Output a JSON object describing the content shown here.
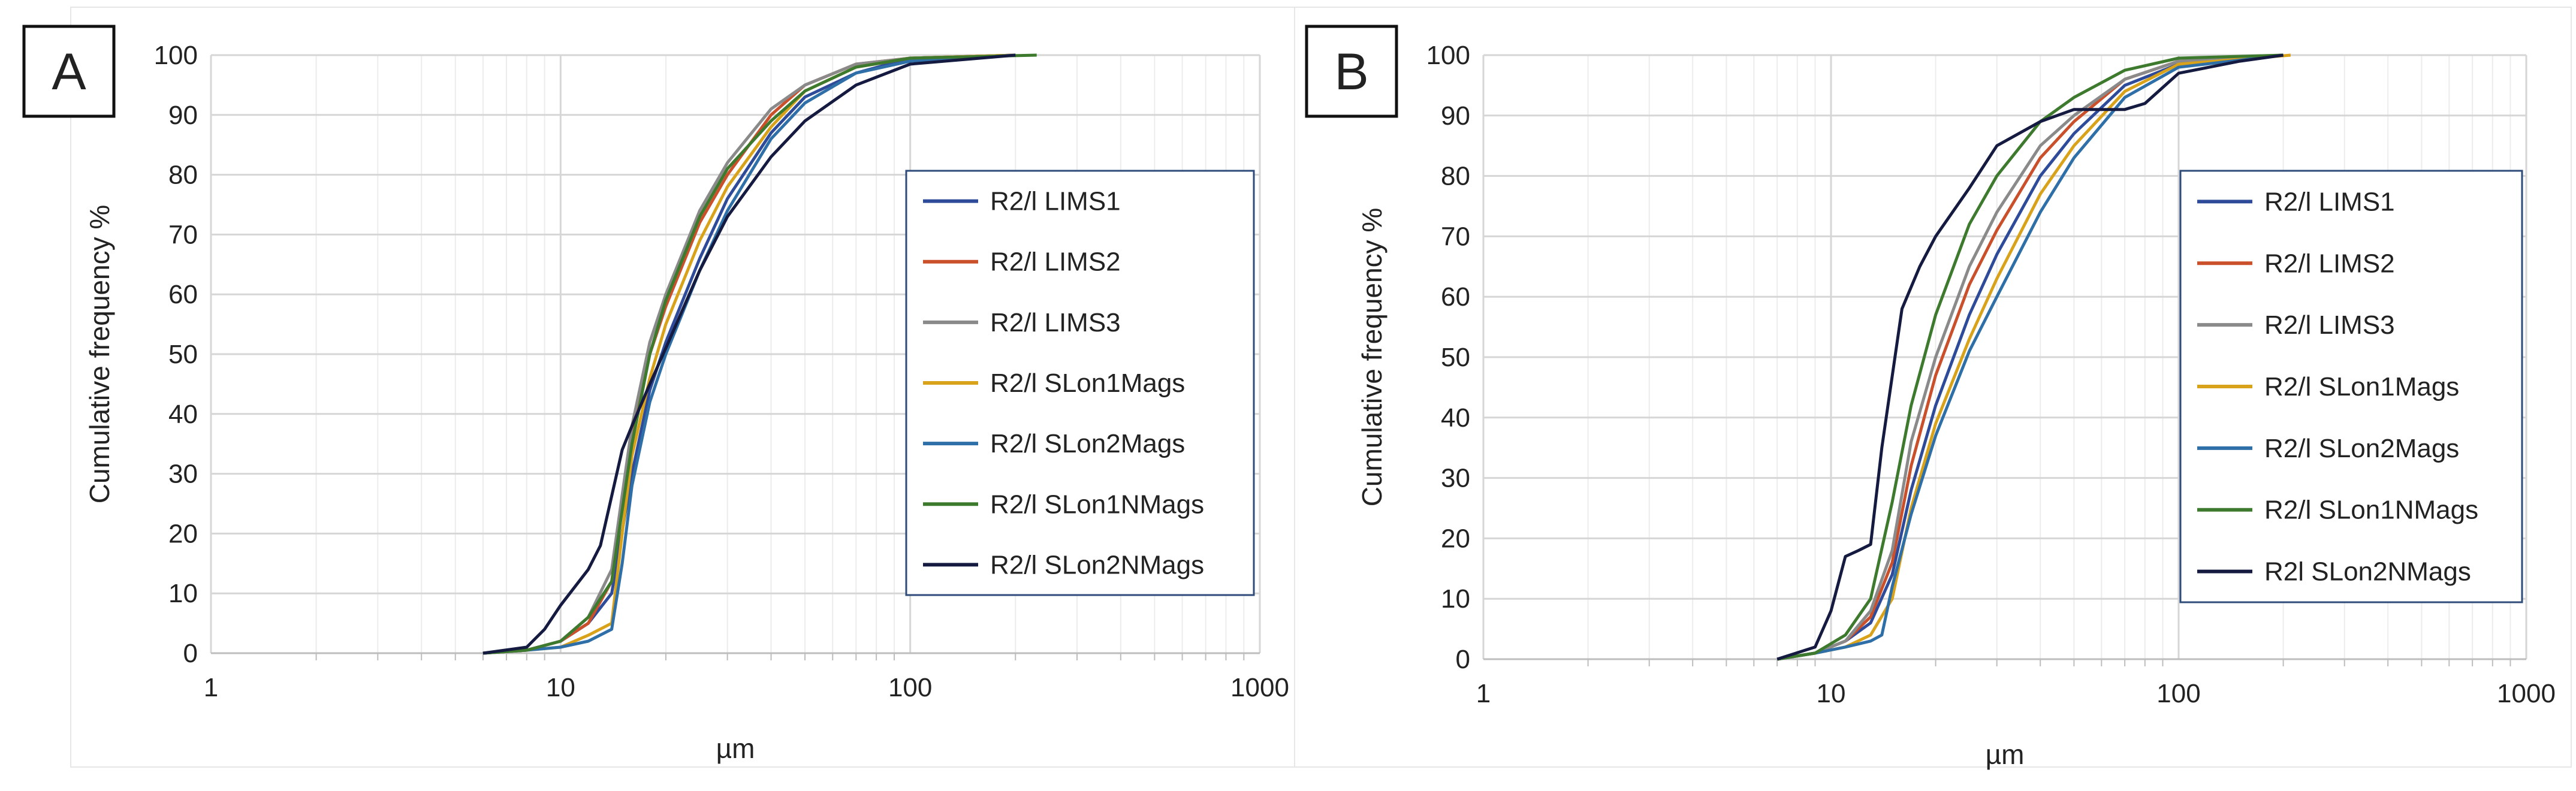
{
  "chart_data": [
    {
      "type": "line",
      "panel_label": "A",
      "xlabel": "µm",
      "ylabel": "Cumulative frequency %",
      "x_scale": "log",
      "xlim": [
        1,
        1000
      ],
      "ylim": [
        0,
        100
      ],
      "x_ticks": [
        "1",
        "10",
        "100",
        "1000"
      ],
      "y_ticks": [
        "0",
        "10",
        "20",
        "30",
        "40",
        "50",
        "60",
        "70",
        "80",
        "90",
        "100"
      ],
      "grid": true,
      "legend": "right",
      "series": [
        {
          "name": "R2/l LIMS1",
          "color": "#2e4b9a",
          "points": [
            [
              6,
              0
            ],
            [
              8,
              0.5
            ],
            [
              10,
              2
            ],
            [
              12,
              5
            ],
            [
              14,
              10
            ],
            [
              16,
              30
            ],
            [
              18,
              44
            ],
            [
              20,
              52
            ],
            [
              25,
              66
            ],
            [
              30,
              76
            ],
            [
              40,
              87
            ],
            [
              50,
              93
            ],
            [
              70,
              97
            ],
            [
              100,
              99.5
            ],
            [
              200,
              100
            ]
          ]
        },
        {
          "name": "R2/l LIMS2",
          "color": "#c9502a",
          "points": [
            [
              6,
              0
            ],
            [
              8,
              0.5
            ],
            [
              10,
              2
            ],
            [
              12,
              5
            ],
            [
              14,
              12
            ],
            [
              16,
              36
            ],
            [
              18,
              50
            ],
            [
              20,
              58
            ],
            [
              25,
              72
            ],
            [
              30,
              80
            ],
            [
              40,
              90
            ],
            [
              50,
              95
            ],
            [
              70,
              98.5
            ],
            [
              100,
              99.5
            ],
            [
              200,
              100
            ]
          ]
        },
        {
          "name": "R2/l LIMS3",
          "color": "#8a8a8a",
          "points": [
            [
              6,
              0
            ],
            [
              8,
              0.5
            ],
            [
              10,
              2
            ],
            [
              12,
              6
            ],
            [
              14,
              14
            ],
            [
              16,
              38
            ],
            [
              18,
              52
            ],
            [
              20,
              60
            ],
            [
              25,
              74
            ],
            [
              30,
              82
            ],
            [
              40,
              91
            ],
            [
              50,
              95
            ],
            [
              70,
              98.5
            ],
            [
              100,
              99.5
            ],
            [
              200,
              100
            ]
          ]
        },
        {
          "name": "R2/l SLon1Mags",
          "color": "#d9a21b",
          "points": [
            [
              6,
              0
            ],
            [
              8,
              0.5
            ],
            [
              10,
              1
            ],
            [
              12,
              3
            ],
            [
              14,
              5
            ],
            [
              15,
              20
            ],
            [
              16,
              33
            ],
            [
              18,
              46
            ],
            [
              20,
              55
            ],
            [
              25,
              69
            ],
            [
              30,
              78
            ],
            [
              40,
              88
            ],
            [
              50,
              94
            ],
            [
              70,
              98
            ],
            [
              100,
              99.5
            ],
            [
              200,
              100
            ]
          ]
        },
        {
          "name": "R2/l SLon2Mags",
          "color": "#2f6fa8",
          "points": [
            [
              6,
              0
            ],
            [
              8,
              0.5
            ],
            [
              10,
              1
            ],
            [
              12,
              2
            ],
            [
              14,
              4
            ],
            [
              15,
              15
            ],
            [
              16,
              28
            ],
            [
              18,
              42
            ],
            [
              20,
              50
            ],
            [
              25,
              64
            ],
            [
              30,
              74
            ],
            [
              40,
              86
            ],
            [
              50,
              92
            ],
            [
              70,
              97
            ],
            [
              100,
              99
            ],
            [
              200,
              100
            ]
          ]
        },
        {
          "name": "R2/l SLon1NMags",
          "color": "#3d7a2e",
          "points": [
            [
              6,
              0
            ],
            [
              8,
              0.5
            ],
            [
              10,
              2
            ],
            [
              12,
              6
            ],
            [
              14,
              12
            ],
            [
              16,
              35
            ],
            [
              18,
              50
            ],
            [
              20,
              59
            ],
            [
              25,
              73
            ],
            [
              30,
              81
            ],
            [
              40,
              89
            ],
            [
              50,
              94
            ],
            [
              70,
              98
            ],
            [
              100,
              99.5
            ],
            [
              230,
              100
            ]
          ]
        },
        {
          "name": "R2/l SLon2NMags",
          "color": "#141a40",
          "points": [
            [
              6,
              0
            ],
            [
              8,
              1
            ],
            [
              9,
              4
            ],
            [
              10,
              8
            ],
            [
              12,
              14
            ],
            [
              13,
              18
            ],
            [
              15,
              34
            ],
            [
              16,
              38
            ],
            [
              18,
              45
            ],
            [
              20,
              51
            ],
            [
              25,
              64
            ],
            [
              30,
              73
            ],
            [
              40,
              83
            ],
            [
              50,
              89
            ],
            [
              70,
              95
            ],
            [
              100,
              98.5
            ],
            [
              200,
              100
            ]
          ]
        }
      ]
    },
    {
      "type": "line",
      "panel_label": "B",
      "xlabel": "µm",
      "ylabel": "Cumulative frequency %",
      "x_scale": "log",
      "xlim": [
        1,
        1000
      ],
      "ylim": [
        0,
        100
      ],
      "x_ticks": [
        "1",
        "10",
        "100",
        "1000"
      ],
      "y_ticks": [
        "0",
        "10",
        "20",
        "30",
        "40",
        "50",
        "60",
        "70",
        "80",
        "90",
        "100"
      ],
      "grid": true,
      "legend": "right",
      "series": [
        {
          "name": "R2/l LIMS1",
          "color": "#2e4b9a",
          "points": [
            [
              7,
              0
            ],
            [
              9,
              1
            ],
            [
              11,
              3
            ],
            [
              13,
              6
            ],
            [
              15,
              14
            ],
            [
              17,
              28
            ],
            [
              20,
              42
            ],
            [
              25,
              57
            ],
            [
              30,
              67
            ],
            [
              40,
              80
            ],
            [
              50,
              87
            ],
            [
              70,
              95
            ],
            [
              100,
              98.5
            ],
            [
              200,
              100
            ]
          ]
        },
        {
          "name": "R2/l LIMS2",
          "color": "#c9502a",
          "points": [
            [
              7,
              0
            ],
            [
              9,
              1
            ],
            [
              11,
              3
            ],
            [
              13,
              7
            ],
            [
              15,
              16
            ],
            [
              17,
              32
            ],
            [
              20,
              47
            ],
            [
              25,
              62
            ],
            [
              30,
              71
            ],
            [
              40,
              83
            ],
            [
              50,
              89
            ],
            [
              70,
              96
            ],
            [
              100,
              99
            ],
            [
              200,
              100
            ]
          ]
        },
        {
          "name": "R2/l LIMS3",
          "color": "#8a8a8a",
          "points": [
            [
              7,
              0
            ],
            [
              9,
              1
            ],
            [
              11,
              3
            ],
            [
              13,
              8
            ],
            [
              15,
              18
            ],
            [
              17,
              36
            ],
            [
              20,
              50
            ],
            [
              25,
              65
            ],
            [
              30,
              74
            ],
            [
              40,
              85
            ],
            [
              50,
              90
            ],
            [
              70,
              96
            ],
            [
              100,
              99
            ],
            [
              200,
              100
            ]
          ]
        },
        {
          "name": "R2/l SLon1Mags",
          "color": "#d9a21b",
          "points": [
            [
              7,
              0
            ],
            [
              9,
              1
            ],
            [
              11,
              2
            ],
            [
              13,
              4
            ],
            [
              15,
              10
            ],
            [
              17,
              25
            ],
            [
              20,
              39
            ],
            [
              25,
              53
            ],
            [
              30,
              63
            ],
            [
              40,
              77
            ],
            [
              50,
              85
            ],
            [
              70,
              94
            ],
            [
              100,
              98.5
            ],
            [
              210,
              100
            ]
          ]
        },
        {
          "name": "R2/l SLon2Mags",
          "color": "#2f6fa8",
          "points": [
            [
              7,
              0
            ],
            [
              9,
              1
            ],
            [
              11,
              2
            ],
            [
              13,
              3
            ],
            [
              14,
              4
            ],
            [
              15,
              12
            ],
            [
              17,
              24
            ],
            [
              20,
              37
            ],
            [
              25,
              51
            ],
            [
              30,
              60
            ],
            [
              40,
              74
            ],
            [
              50,
              83
            ],
            [
              70,
              93
            ],
            [
              100,
              98
            ],
            [
              200,
              100
            ]
          ]
        },
        {
          "name": "R2/l SLon1NMags",
          "color": "#3d7a2e",
          "points": [
            [
              7,
              0
            ],
            [
              9,
              1
            ],
            [
              11,
              4
            ],
            [
              13,
              10
            ],
            [
              15,
              26
            ],
            [
              17,
              42
            ],
            [
              20,
              57
            ],
            [
              25,
              72
            ],
            [
              30,
              80
            ],
            [
              40,
              89
            ],
            [
              50,
              93
            ],
            [
              70,
              97.5
            ],
            [
              100,
              99.5
            ],
            [
              200,
              100
            ]
          ]
        },
        {
          "name": "R2l SLon2NMags",
          "color": "#141a40",
          "points": [
            [
              7,
              0
            ],
            [
              9,
              2
            ],
            [
              10,
              8
            ],
            [
              11,
              17
            ],
            [
              12,
              18
            ],
            [
              13,
              19
            ],
            [
              14,
              35
            ],
            [
              16,
              58
            ],
            [
              18,
              65
            ],
            [
              20,
              70
            ],
            [
              25,
              78
            ],
            [
              30,
              85
            ],
            [
              40,
              89
            ],
            [
              50,
              91
            ],
            [
              60,
              91
            ],
            [
              70,
              91
            ],
            [
              80,
              92
            ],
            [
              100,
              97
            ],
            [
              150,
              99
            ],
            [
              200,
              100
            ]
          ]
        }
      ]
    }
  ]
}
